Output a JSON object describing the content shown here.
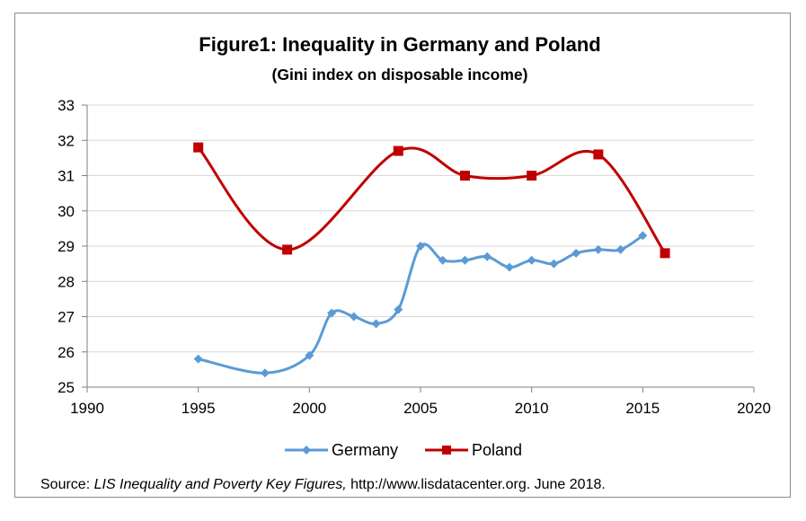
{
  "chart_data": {
    "type": "line",
    "title": "Figure1: Inequality in Germany and Poland",
    "subtitle": "(Gini index on disposable income)",
    "xlabel": "",
    "ylabel": "",
    "xlim": [
      1990,
      2020
    ],
    "ylim": [
      25,
      33
    ],
    "x_ticks": [
      1990,
      1995,
      2000,
      2005,
      2010,
      2015,
      2020
    ],
    "y_ticks": [
      25,
      26,
      27,
      28,
      29,
      30,
      31,
      32,
      33
    ],
    "grid": "horizontal",
    "legend_position": "bottom",
    "series": [
      {
        "name": "Germany",
        "color": "#5B9BD5",
        "marker": "diamond",
        "x": [
          1995,
          1998,
          2000,
          2001,
          2002,
          2003,
          2004,
          2005,
          2006,
          2007,
          2008,
          2009,
          2010,
          2011,
          2012,
          2013,
          2014,
          2015
        ],
        "y": [
          25.8,
          25.4,
          25.9,
          27.1,
          27.0,
          26.8,
          27.2,
          29.0,
          28.6,
          28.6,
          28.7,
          28.4,
          28.6,
          28.5,
          28.8,
          28.9,
          28.9,
          29.3
        ]
      },
      {
        "name": "Poland",
        "color": "#C00000",
        "marker": "square",
        "x": [
          1995,
          1999,
          2004,
          2007,
          2010,
          2013,
          2016
        ],
        "y": [
          31.8,
          28.9,
          31.7,
          31.0,
          31.0,
          31.6,
          28.8
        ]
      }
    ]
  },
  "source": {
    "prefix": "Source: ",
    "italic": "LIS Inequality and Poverty Key Figures,",
    "suffix": " http://www.lisdatacenter.org. June 2018."
  }
}
